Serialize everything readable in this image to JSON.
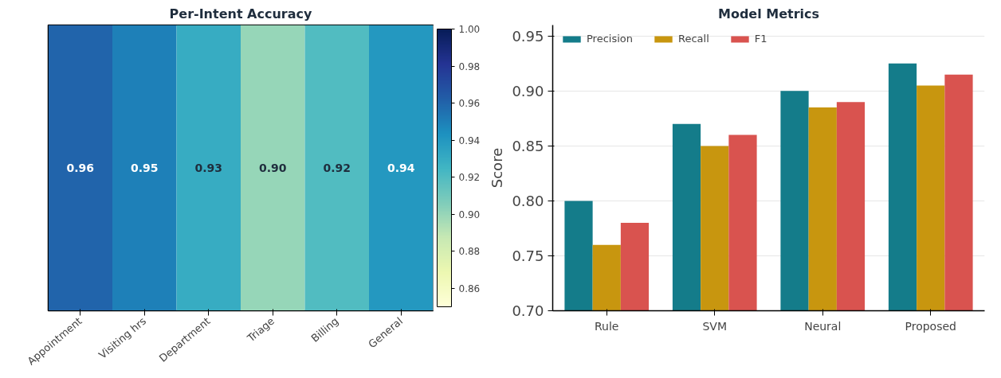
{
  "chart_data": [
    {
      "type": "heatmap",
      "title": "Per-Intent Accuracy",
      "categories": [
        "Appointment",
        "Visiting hrs",
        "Department",
        "Triage",
        "Billing",
        "General"
      ],
      "y_categories": [
        null
      ],
      "cells": [
        [
          0.96,
          0.95,
          0.93,
          0.9,
          0.92,
          0.94
        ]
      ],
      "cell_labels": [
        [
          "0.96",
          "0.95",
          "0.93",
          "0.90",
          "0.92",
          "0.94"
        ]
      ],
      "clim": [
        0.85,
        1.0
      ],
      "cticks": [
        0.86,
        0.88,
        {
          "value": 0.9,
          "label": "0.90"
        },
        0.92,
        0.94,
        0.96,
        0.98,
        {
          "value": 1.0,
          "label": "1.00"
        }
      ],
      "data_labels": true
    },
    {
      "type": "bar",
      "title": "Model Metrics",
      "ylabel": "Score",
      "categories": [
        "Rule",
        "SVM",
        "Neural",
        "Proposed"
      ],
      "series": [
        {
          "name": "Precision",
          "color": "#147c8a",
          "values": [
            0.8,
            0.87,
            0.9,
            0.925
          ]
        },
        {
          "name": "Recall",
          "color": "#c8960f",
          "values": [
            0.76,
            0.85,
            0.885,
            0.905
          ]
        },
        {
          "name": "F1",
          "color": "#d9534f",
          "values": [
            0.78,
            0.86,
            0.89,
            0.915
          ]
        }
      ],
      "ylim": [
        0.7,
        0.96
      ],
      "yticks": [
        {
          "value": 0.7,
          "label": "0.70"
        },
        0.75,
        {
          "value": 0.8,
          "label": "0.80"
        },
        0.85,
        {
          "value": 0.9,
          "label": "0.90"
        },
        0.95
      ],
      "grid": "y",
      "legend": "top left"
    }
  ]
}
